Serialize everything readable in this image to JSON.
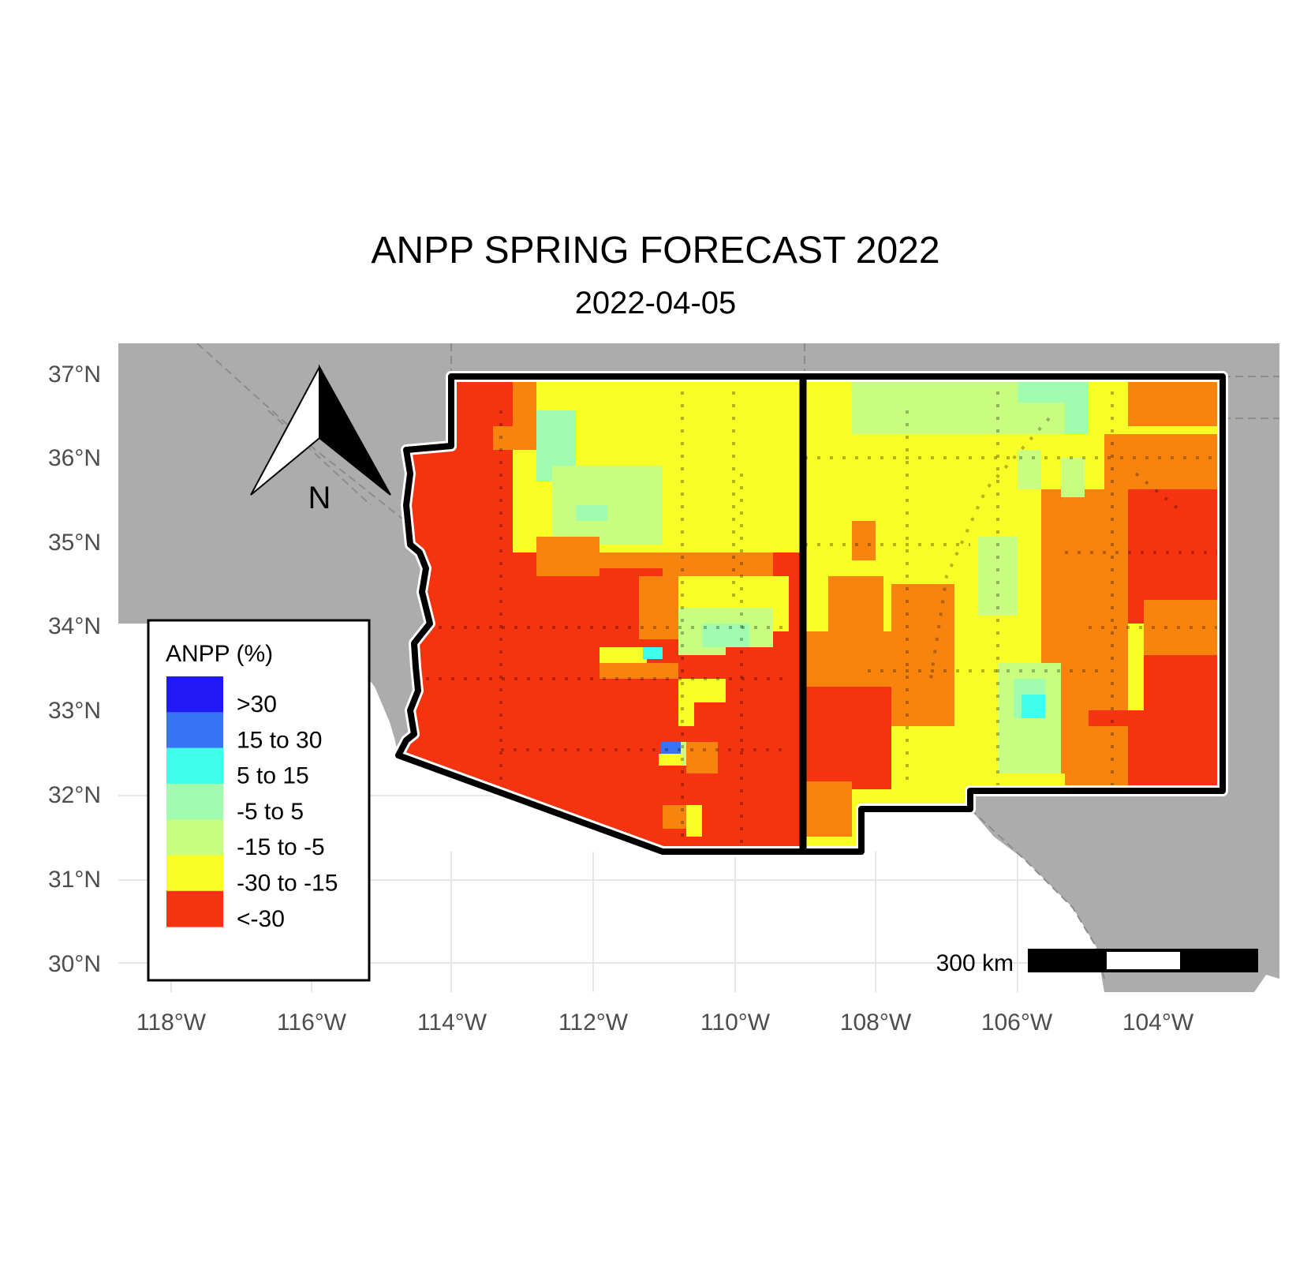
{
  "title": "ANPP SPRING FORECAST 2022",
  "subtitle": "2022-04-05",
  "axes": {
    "y_ticks": [
      "37°N",
      "36°N",
      "35°N",
      "34°N",
      "33°N",
      "32°N",
      "31°N",
      "30°N"
    ],
    "x_ticks": [
      "118°W",
      "116°W",
      "114°W",
      "112°W",
      "110°W",
      "108°W",
      "106°W",
      "104°W"
    ]
  },
  "north_arrow": {
    "label": "N"
  },
  "scale_bar": {
    "label": "300 km"
  },
  "legend": {
    "title": "ANPP (%)",
    "items": [
      {
        "label": ">30",
        "color": "#2018f5"
      },
      {
        "label": "15 to 30",
        "color": "#3673f5"
      },
      {
        "label": "5 to 15",
        "color": "#40fdeb"
      },
      {
        "label": "-5 to 5",
        "color": "#a0fcaf"
      },
      {
        "label": "-15 to -5",
        "color": "#c8fd80"
      },
      {
        "label": "-30 to -15",
        "color": "#f9fd26"
      },
      {
        "label": "<-30",
        "color": "#f5330f"
      }
    ]
  },
  "colors": {
    "background_land": "#acacac",
    "state_outline": "#000000",
    "gridline": "#e6e6e6",
    "orange_class": "#f88410"
  }
}
